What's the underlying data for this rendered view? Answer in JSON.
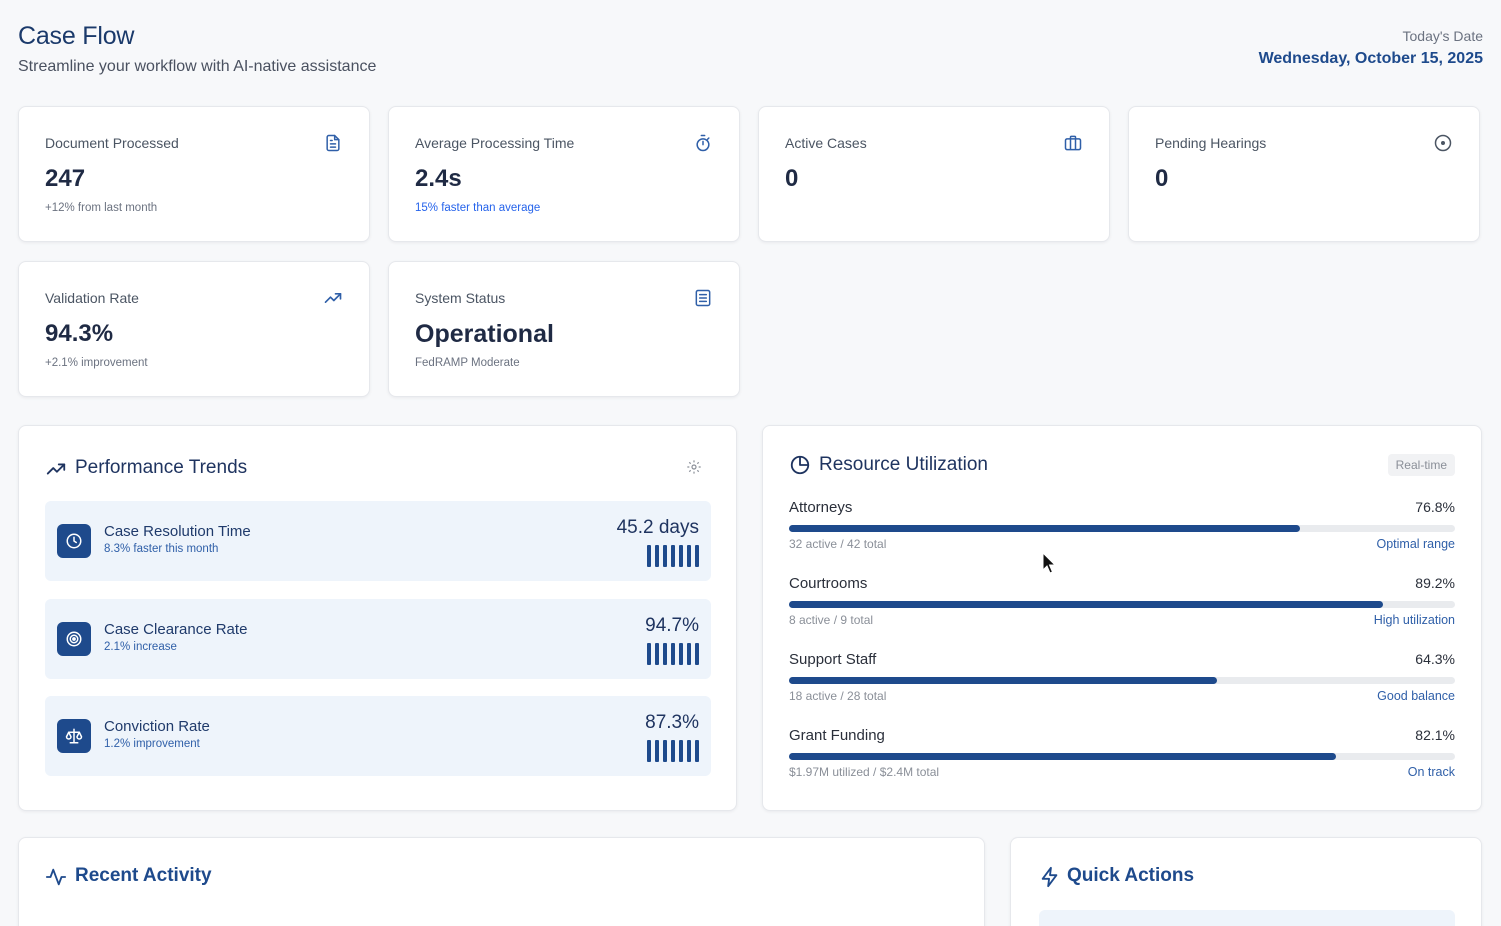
{
  "header": {
    "title": "Case Flow",
    "subtitle": "Streamline your workflow with AI-native assistance",
    "date_label": "Today's Date",
    "date_value": "Wednesday, October 15, 2025"
  },
  "stats": [
    {
      "label": "Document Processed",
      "value": "247",
      "note": "+12% from last month",
      "icon": "document-icon"
    },
    {
      "label": "Average Processing Time",
      "value": "2.4s",
      "note": "15% faster than average",
      "icon": "stopwatch-icon"
    },
    {
      "label": "Active Cases",
      "value": "0",
      "note": "",
      "icon": "briefcase-icon"
    },
    {
      "label": "Pending Hearings",
      "value": "0",
      "note": "",
      "icon": "clock-circle-icon"
    },
    {
      "label": "Validation Rate",
      "value": "94.3%",
      "note": "+2.1% improvement",
      "icon": "trending-up-icon"
    },
    {
      "label": "System Status",
      "value": "Operational",
      "note": "FedRAMP Moderate",
      "icon": "list-document-icon"
    }
  ],
  "performance": {
    "title": "Performance Trends",
    "metrics": [
      {
        "name": "Case Resolution Time",
        "sub": "8.3% faster this month",
        "value": "45.2 days",
        "icon": "clock-icon"
      },
      {
        "name": "Case Clearance Rate",
        "sub": "2.1% increase",
        "value": "94.7%",
        "icon": "target-icon"
      },
      {
        "name": "Conviction Rate",
        "sub": "1.2% improvement",
        "value": "87.3%",
        "icon": "scales-icon"
      }
    ]
  },
  "resources": {
    "title": "Resource Utilization",
    "badge": "Real-time",
    "items": [
      {
        "name": "Attorneys",
        "pct": "76.8%",
        "fill": 0.768,
        "detail": "32 active / 42 total",
        "status": "Optimal range"
      },
      {
        "name": "Courtrooms",
        "pct": "89.2%",
        "fill": 0.892,
        "detail": "8 active / 9 total",
        "status": "High utilization"
      },
      {
        "name": "Support Staff",
        "pct": "64.3%",
        "fill": 0.643,
        "detail": "18 active / 28 total",
        "status": "Good balance"
      },
      {
        "name": "Grant Funding",
        "pct": "82.1%",
        "fill": 0.821,
        "detail": "$1.97M utilized / $2.4M total",
        "status": "On track"
      }
    ]
  },
  "recent_activity": {
    "title": "Recent Activity"
  },
  "quick_actions": {
    "title": "Quick Actions"
  },
  "colors": {
    "accent": "#1e4a8c",
    "link": "#2563eb"
  }
}
